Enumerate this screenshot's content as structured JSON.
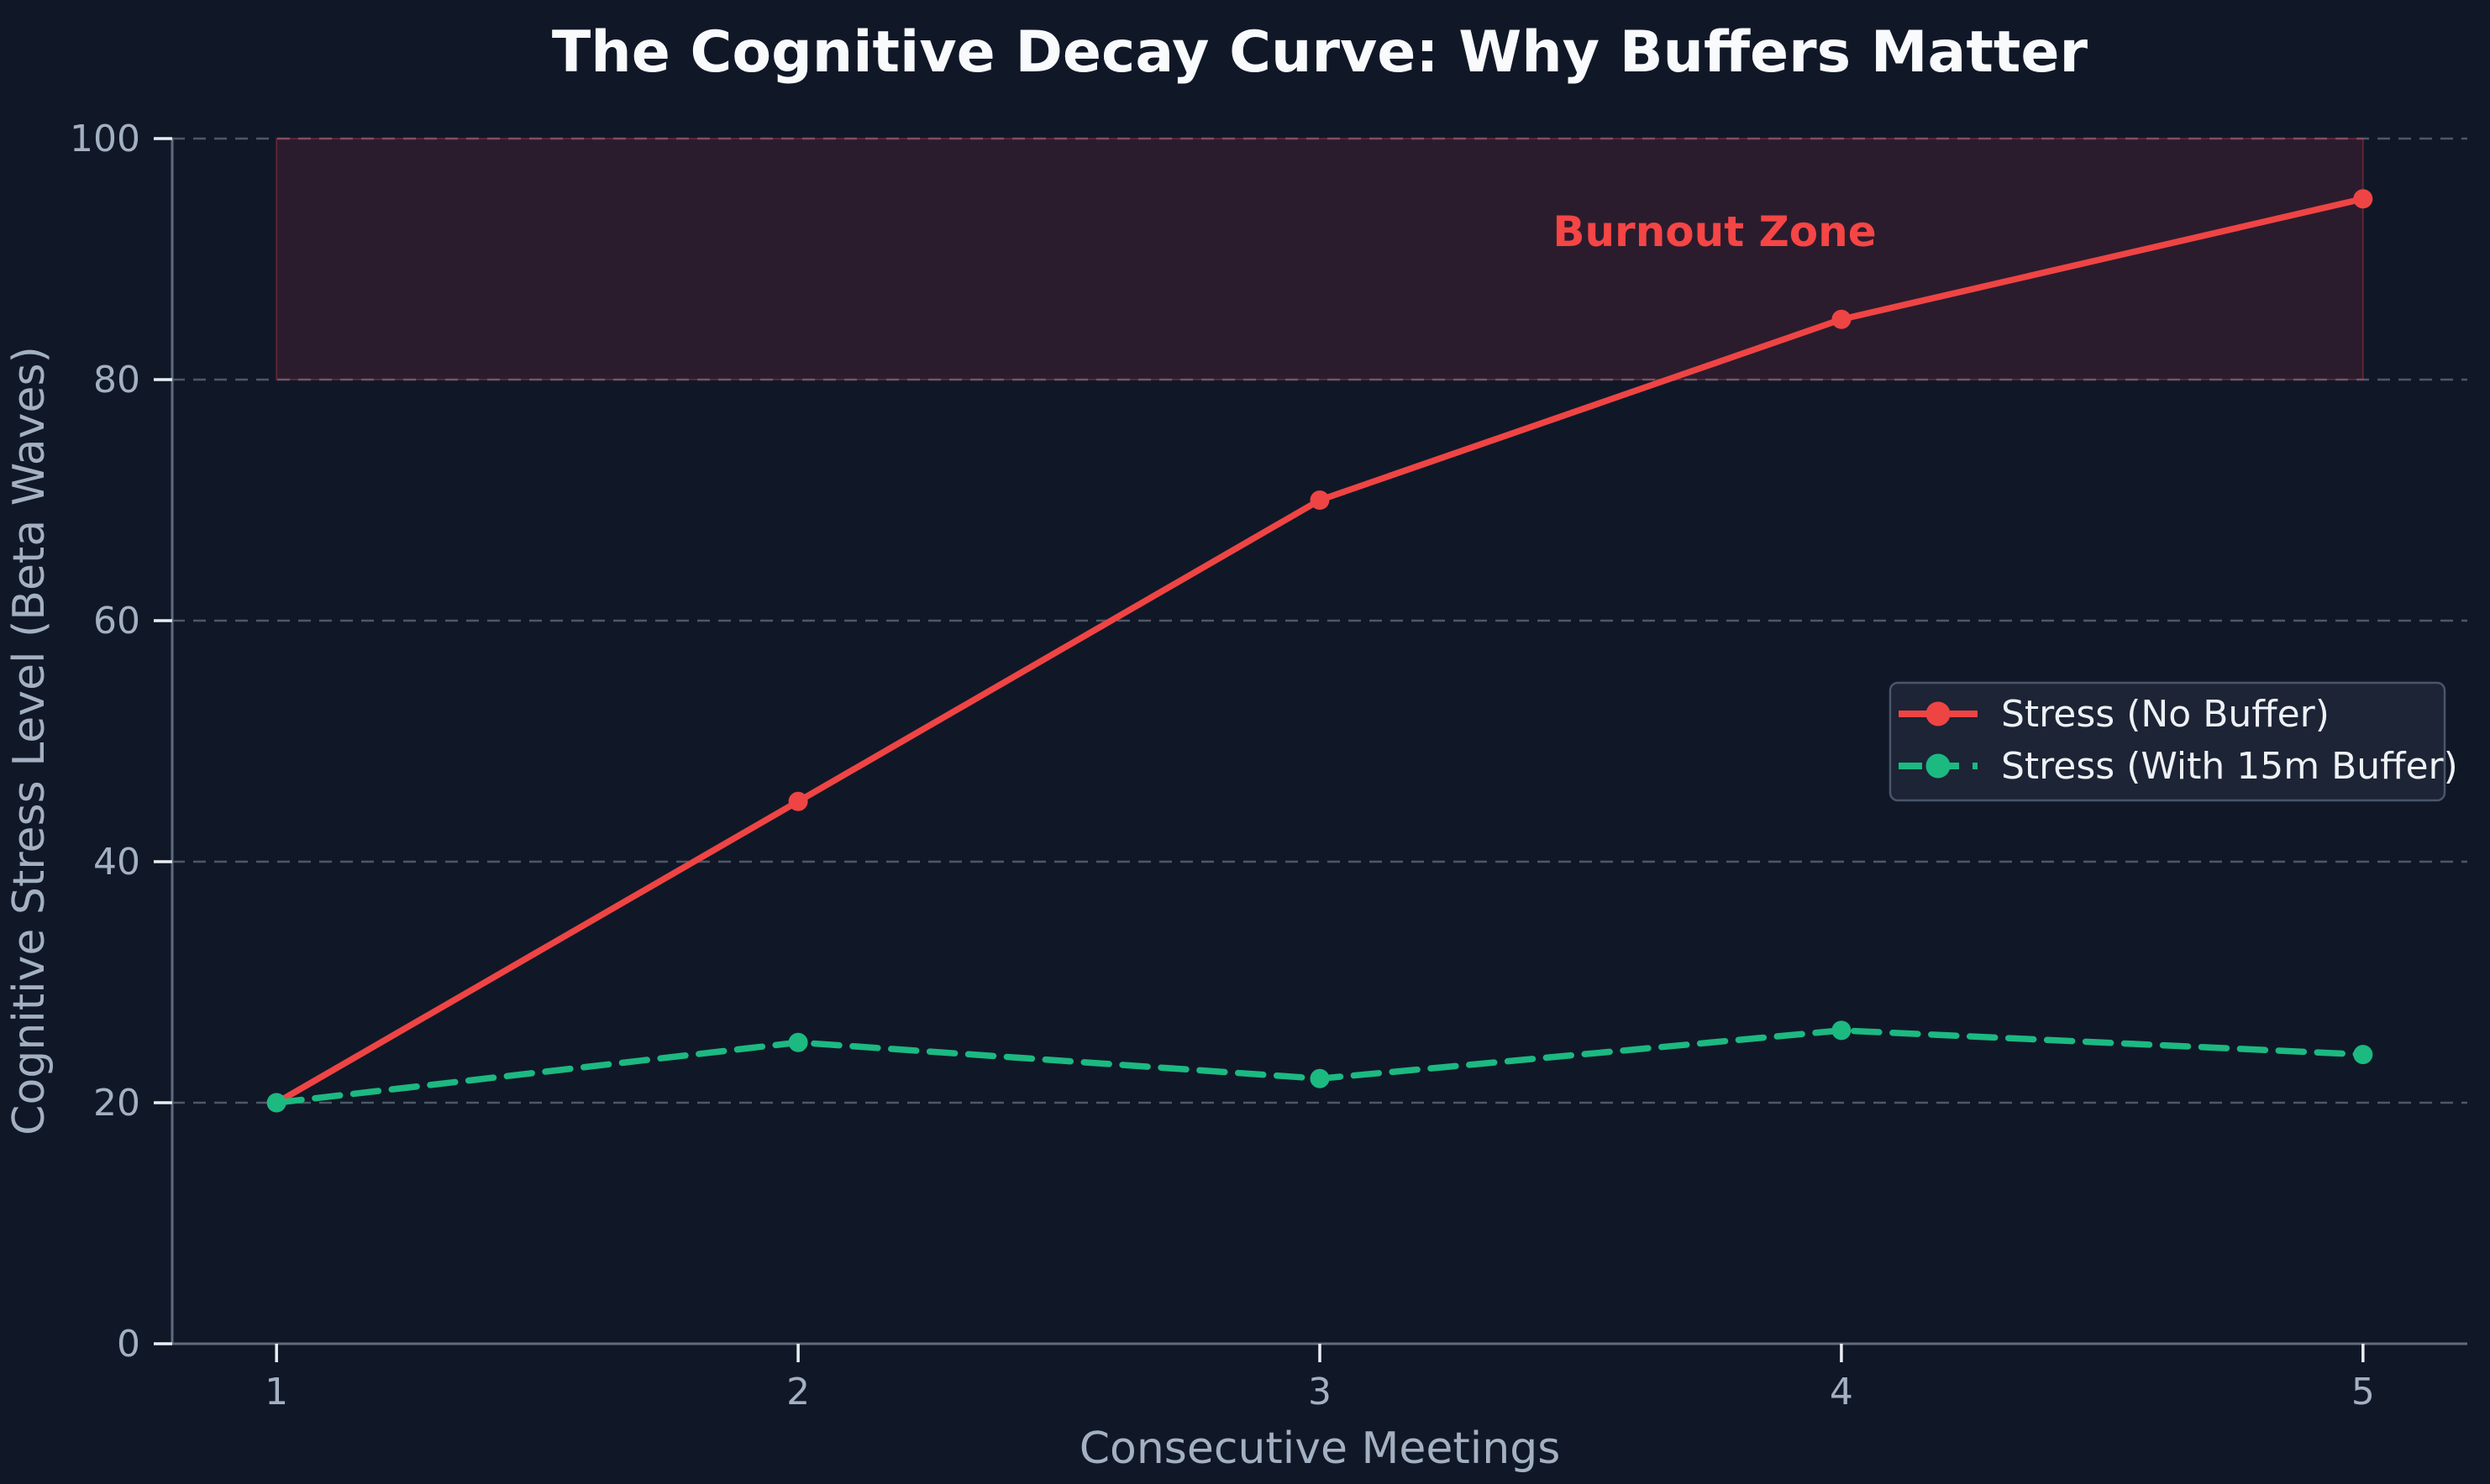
{
  "chart_data": {
    "type": "line",
    "title": "The Cognitive Decay Curve: Why Buffers Matter",
    "xlabel": "Consecutive Meetings",
    "ylabel": "Cognitive Stress Level (Beta Waves)",
    "x": [
      1,
      2,
      3,
      4,
      5
    ],
    "xtick_labels": [
      "1",
      "2",
      "3",
      "4",
      "5"
    ],
    "yticks": [
      0,
      20,
      40,
      60,
      80,
      100
    ],
    "xlim": [
      0.8,
      5.2
    ],
    "ylim": [
      0,
      100
    ],
    "grid": true,
    "legend_position": "center-right",
    "series": [
      {
        "name": "Stress (No Buffer)",
        "values": [
          20,
          45,
          70,
          85,
          95
        ],
        "color": "#ef4444",
        "line_style": "solid",
        "marker": "circle"
      },
      {
        "name": "Stress (With 15m Buffer)",
        "values": [
          20,
          25,
          22,
          26,
          24
        ],
        "color": "#1cb981",
        "line_style": "dashed",
        "marker": "circle"
      }
    ],
    "region": {
      "label": "Burnout Zone",
      "x_start": 1,
      "x_end": 5,
      "y_start": 80,
      "y_end": 100,
      "fill": "#f23b4f",
      "fill_opacity": 0.12,
      "edge_opacity": 0.3,
      "label_color": "#f54545"
    }
  },
  "colors": {
    "background": "#101828",
    "grid": "#4d5866",
    "spine": "#5f6b7c",
    "tick": "#e9eef4",
    "tick_label": "#a3b0c2",
    "axis_label": "#a3b0c2",
    "title": "#f8fafc",
    "legend_bg": "#1d2636",
    "legend_border": "#49566b",
    "legend_text": "#eef1f5"
  }
}
